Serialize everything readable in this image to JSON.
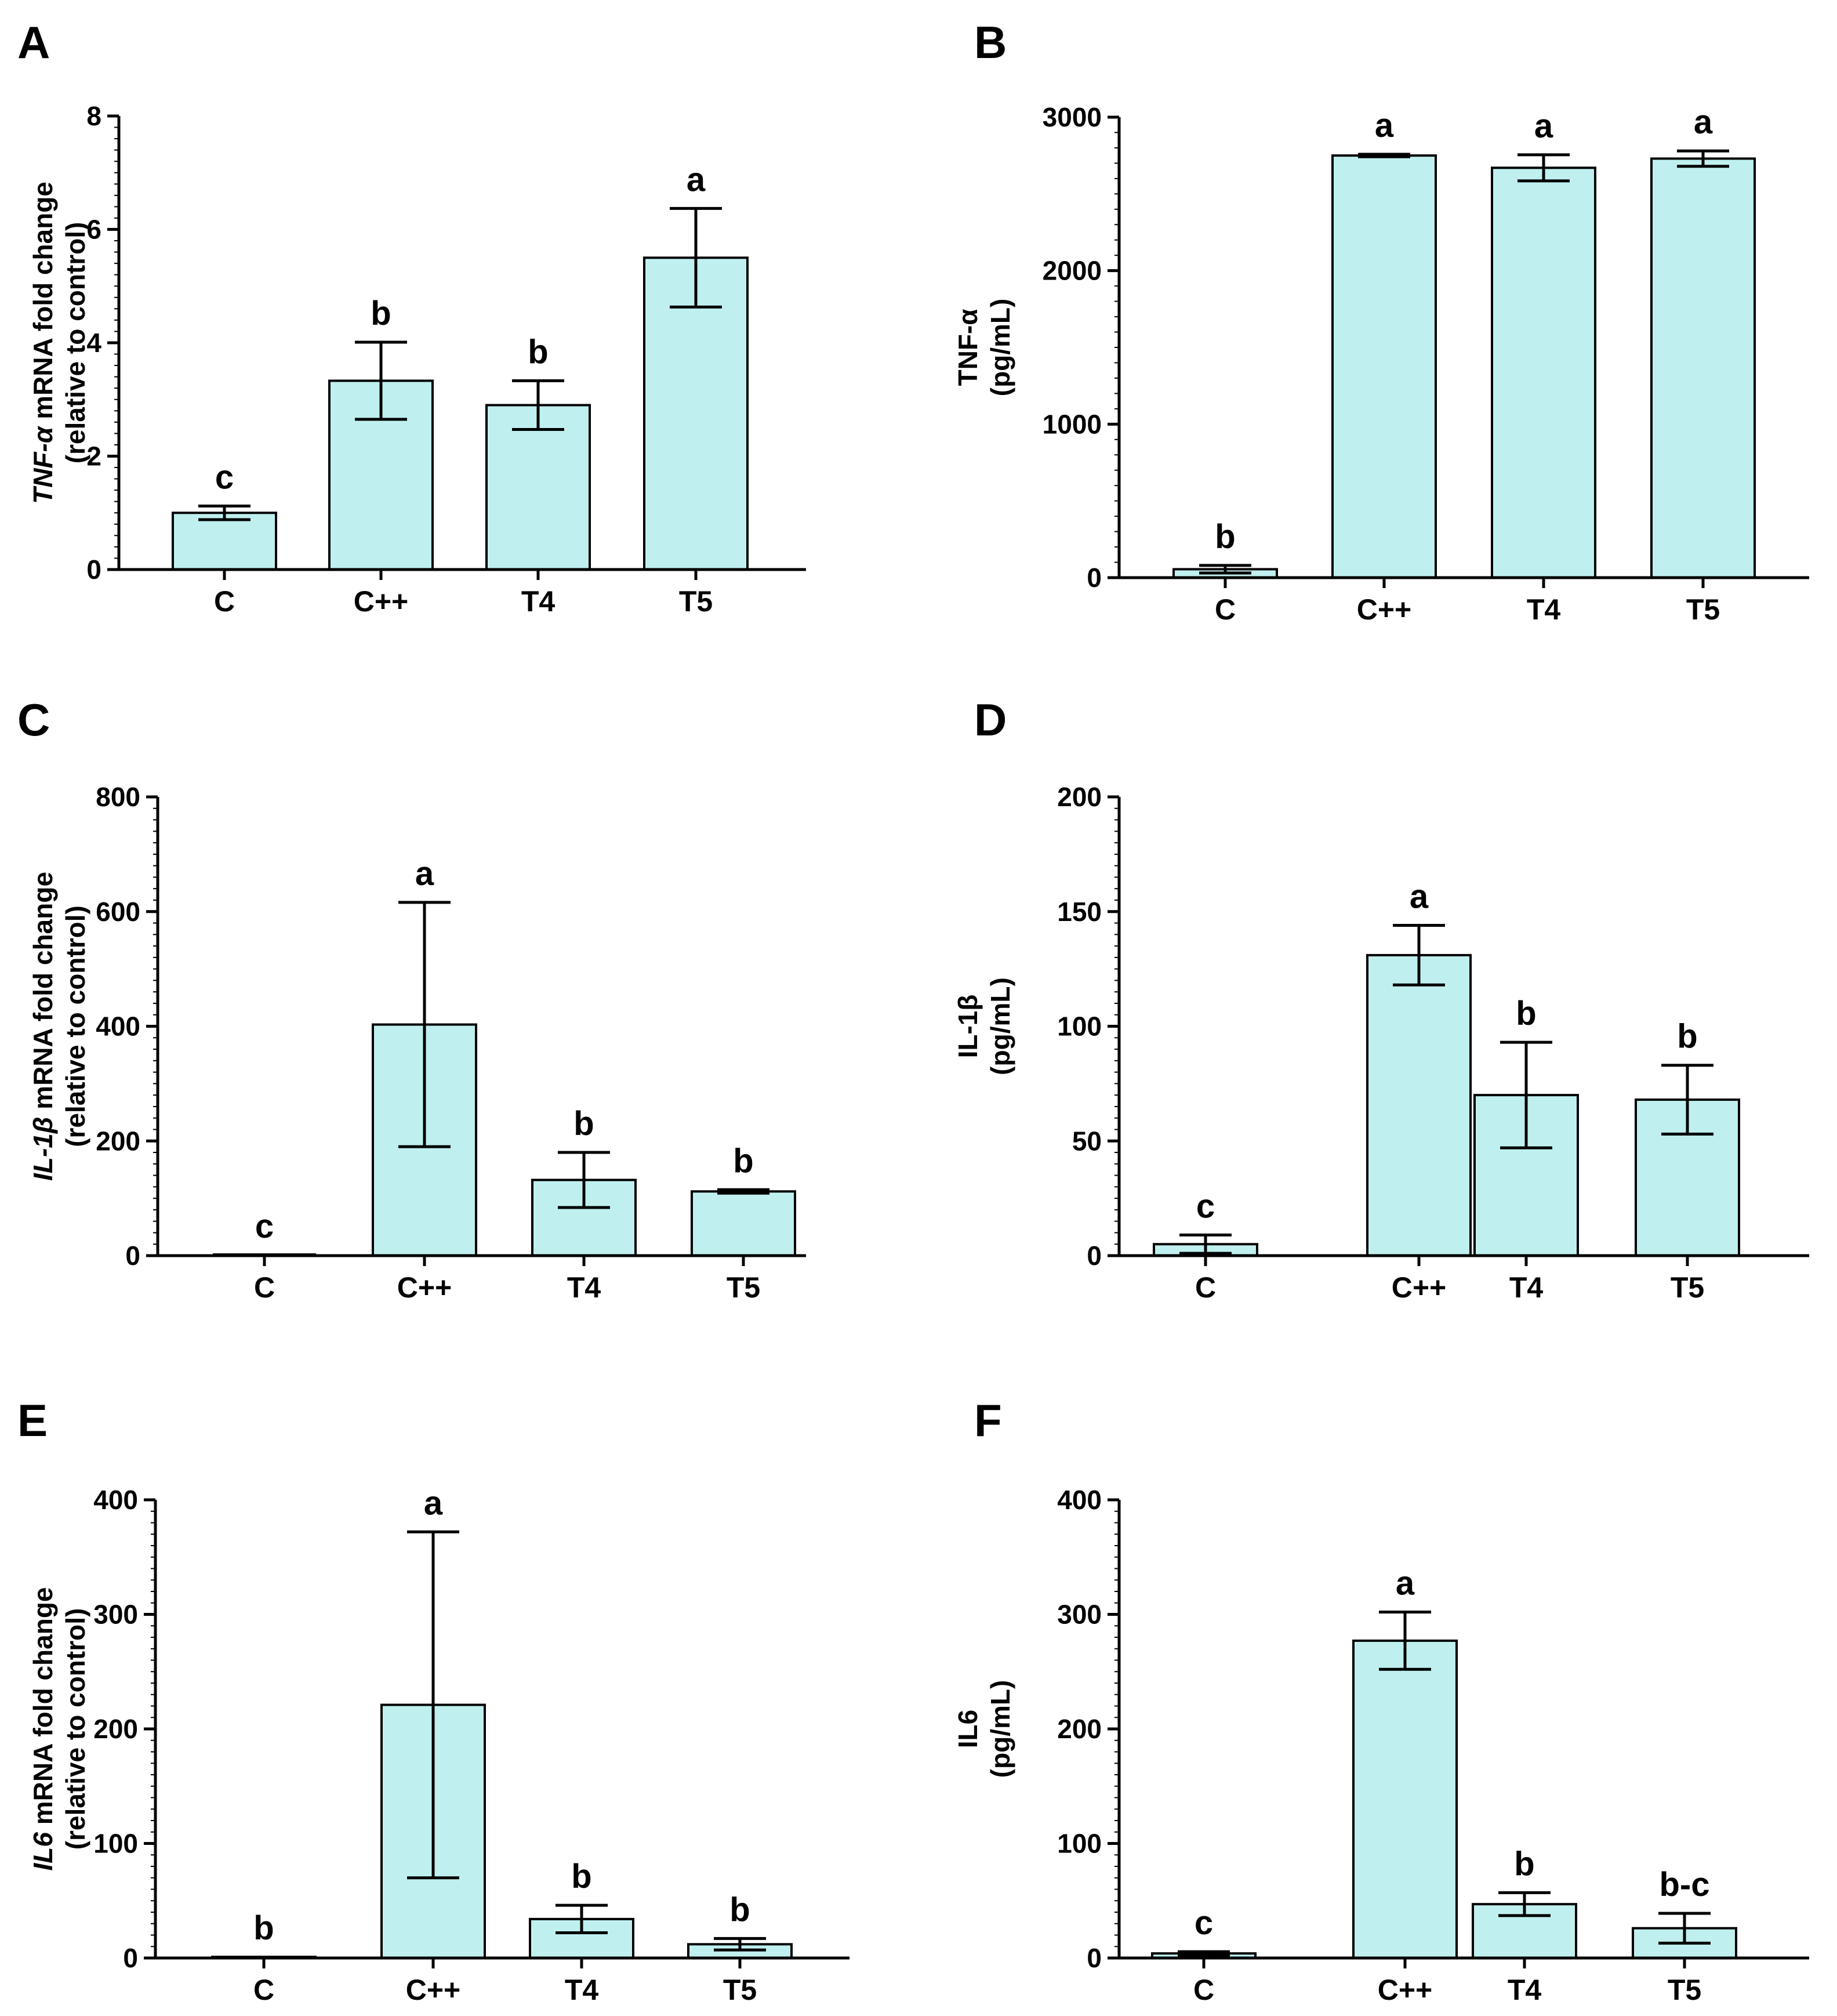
{
  "figure": {
    "bar_color": "#bff0ef",
    "edge_color": "#000000"
  },
  "chart_data": [
    {
      "panel": "A",
      "type": "bar",
      "ylabel_lines": [
        {
          "parts": [
            {
              "text": "TNF-α",
              "italic": true
            },
            {
              "text": " mRNA fold change",
              "italic": false
            }
          ]
        },
        {
          "parts": [
            {
              "text": "(relative to control)",
              "italic": false
            }
          ]
        }
      ],
      "ylim": [
        0,
        8
      ],
      "yticks": [
        0,
        2,
        4,
        6,
        8
      ],
      "categories": [
        "C",
        "C++",
        "T4",
        "T5"
      ],
      "values": [
        1.0,
        3.33,
        2.9,
        5.5
      ],
      "errors": [
        0.12,
        0.68,
        0.43,
        0.87
      ],
      "sig_labels": [
        "c",
        "b",
        "b",
        "a"
      ]
    },
    {
      "panel": "B",
      "type": "bar",
      "ylabel_lines": [
        {
          "parts": [
            {
              "text": "TNF-α",
              "italic": false
            }
          ]
        },
        {
          "parts": [
            {
              "text": "(pg/mL)",
              "italic": false
            }
          ]
        }
      ],
      "ylim": [
        0,
        3000
      ],
      "yticks": [
        0,
        1000,
        2000,
        3000
      ],
      "categories": [
        "C",
        "C++",
        "T4",
        "T5"
      ],
      "values": [
        55,
        2750,
        2670,
        2730
      ],
      "errors": [
        25,
        8,
        85,
        50
      ],
      "sig_labels": [
        "b",
        "a",
        "a",
        "a"
      ]
    },
    {
      "panel": "C",
      "type": "bar",
      "ylabel_lines": [
        {
          "parts": [
            {
              "text": "IL-1β",
              "italic": true
            },
            {
              "text": " mRNA fold change",
              "italic": false
            }
          ]
        },
        {
          "parts": [
            {
              "text": "(relative to control)",
              "italic": false
            }
          ]
        }
      ],
      "ylim": [
        0,
        800
      ],
      "yticks": [
        0,
        200,
        400,
        600,
        800
      ],
      "categories": [
        "C",
        "C++",
        "T4",
        "T5"
      ],
      "values": [
        1,
        403,
        132,
        112
      ],
      "errors": [
        0,
        213,
        48,
        3
      ],
      "sig_labels": [
        "c",
        "a",
        "b",
        "b"
      ]
    },
    {
      "panel": "D",
      "type": "bar",
      "ylabel_lines": [
        {
          "parts": [
            {
              "text": "IL-1β",
              "italic": false
            }
          ]
        },
        {
          "parts": [
            {
              "text": "(pg/mL)",
              "italic": false
            }
          ]
        }
      ],
      "ylim": [
        0,
        200
      ],
      "yticks": [
        0,
        50,
        100,
        150,
        200
      ],
      "categories": [
        "C",
        "C++",
        "T4",
        "T5"
      ],
      "values": [
        5,
        131,
        70,
        68
      ],
      "errors": [
        4,
        13,
        23,
        15
      ],
      "sig_labels": [
        "c",
        "a",
        "b",
        "b"
      ]
    },
    {
      "panel": "E",
      "type": "bar",
      "ylabel_lines": [
        {
          "parts": [
            {
              "text": "IL6",
              "italic": true
            },
            {
              "text": " mRNA fold change",
              "italic": false
            }
          ]
        },
        {
          "parts": [
            {
              "text": "(relative to control)",
              "italic": false
            }
          ]
        }
      ],
      "ylim": [
        0,
        400
      ],
      "yticks": [
        0,
        100,
        200,
        300,
        400
      ],
      "categories": [
        "C",
        "C++",
        "T4",
        "T5"
      ],
      "values": [
        1,
        221,
        34,
        12
      ],
      "errors": [
        0,
        151,
        12,
        5
      ],
      "sig_labels": [
        "b",
        "a",
        "b",
        "b"
      ]
    },
    {
      "panel": "F",
      "type": "bar",
      "ylabel_lines": [
        {
          "parts": [
            {
              "text": "IL6",
              "italic": false
            }
          ]
        },
        {
          "parts": [
            {
              "text": "(pg/mL)",
              "italic": false
            }
          ]
        }
      ],
      "ylim": [
        0,
        400
      ],
      "yticks": [
        0,
        100,
        200,
        300,
        400
      ],
      "categories": [
        "C",
        "C++",
        "T4",
        "T5"
      ],
      "values": [
        4,
        277,
        47,
        26
      ],
      "errors": [
        1.5,
        25,
        10,
        13
      ],
      "sig_labels": [
        "c",
        "a",
        "b",
        "b-c"
      ]
    }
  ]
}
